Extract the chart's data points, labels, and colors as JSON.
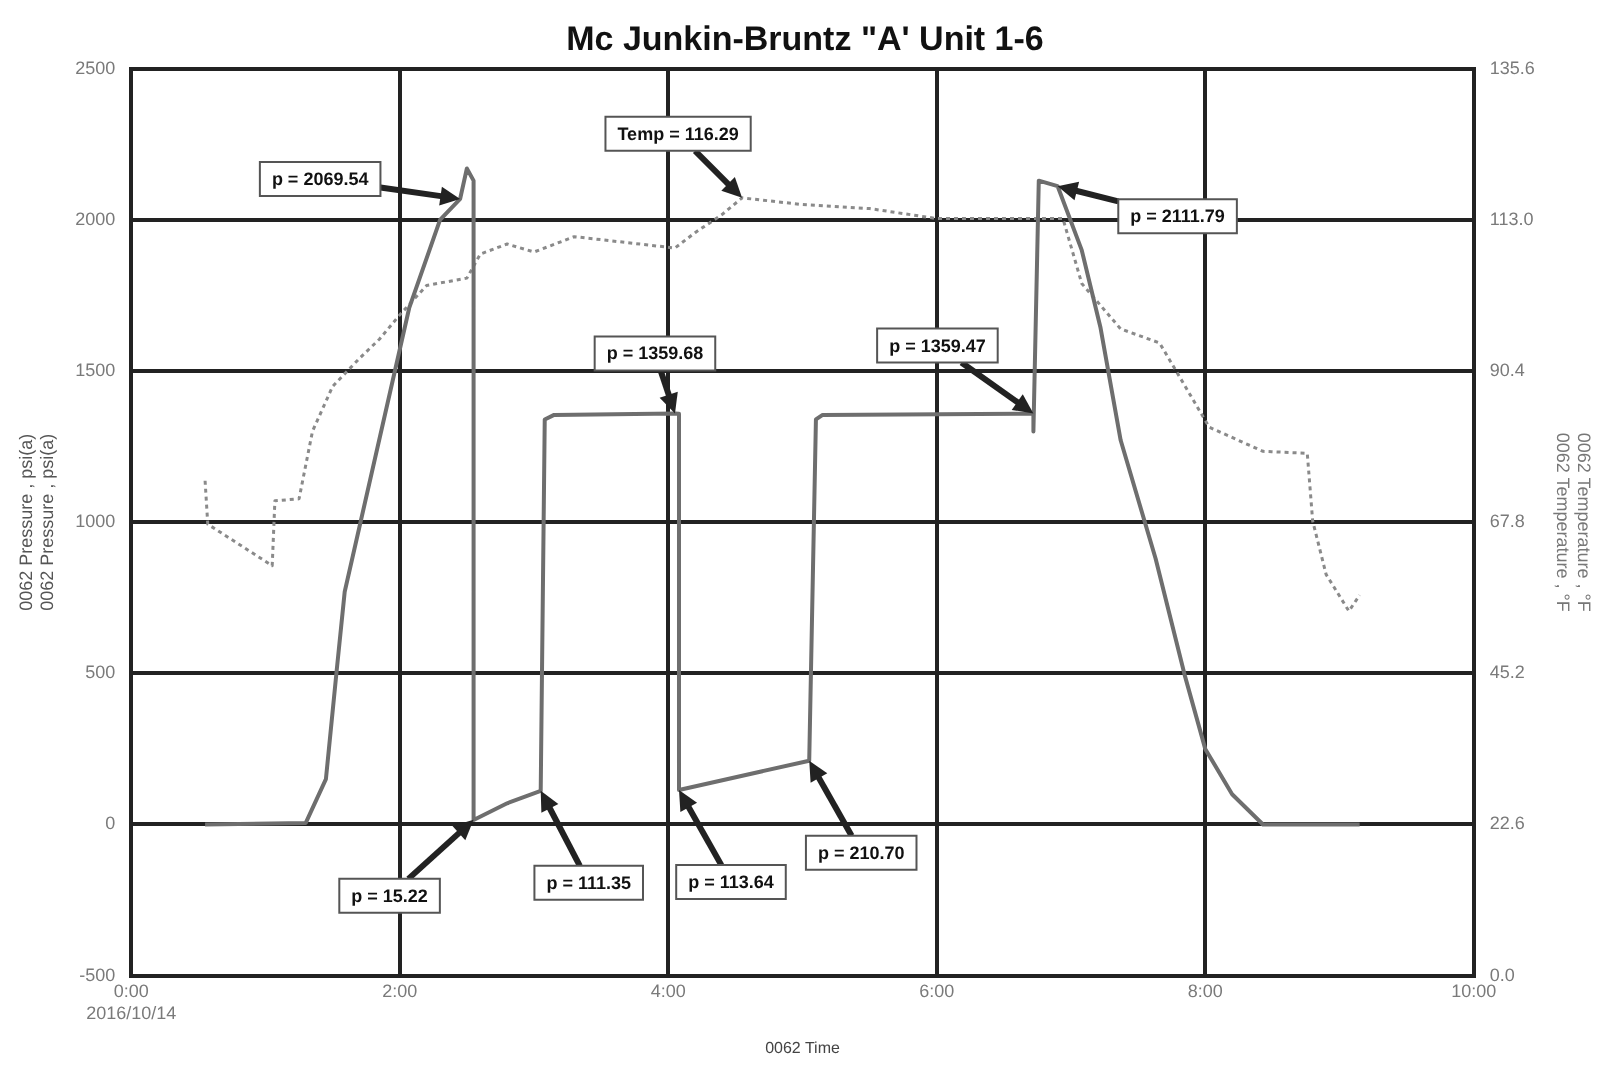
{
  "chart_data": {
    "type": "line",
    "title": "Mc Junkin-Bruntz \"A' Unit 1-6",
    "xlabel": "0062 Time",
    "ylabel": "0062 Pressure , psi(a)\n0062 Pressure , psi(a)",
    "y2label": "0062 Temperature , °F\n0062 Temperature , °F",
    "xlim": [
      0,
      10
    ],
    "xticks": [
      {
        "value": 0,
        "label": "0:00\n2016/10/14"
      },
      {
        "value": 2,
        "label": "2:00"
      },
      {
        "value": 4,
        "label": "4:00"
      },
      {
        "value": 6,
        "label": "6:00"
      },
      {
        "value": 8,
        "label": "8:00"
      },
      {
        "value": 10,
        "label": "10:00"
      }
    ],
    "ylim": [
      -500,
      2500
    ],
    "yticks": [
      -500,
      0,
      500,
      1000,
      1500,
      2000,
      2500
    ],
    "y2lim": [
      0,
      135.6
    ],
    "y2ticks": [
      {
        "value": 0,
        "label": "0.0"
      },
      22.6,
      45.2,
      67.8,
      90.4,
      {
        "value": 113,
        "label": "113.0"
      },
      135.6
    ],
    "grid": true,
    "legend": false,
    "marker": "none",
    "series": [
      {
        "color": "#6e6e6e",
        "line_style": "solid",
        "x": [
          0.55,
          1.3,
          1.45,
          1.53,
          1.59,
          2.07,
          2.3,
          2.45,
          2.5,
          2.55,
          2.55,
          2.8,
          3.05,
          3.08,
          3.15,
          4.05,
          4.08,
          4.08,
          5.05,
          5.1,
          5.15,
          6.72,
          6.72,
          6.76,
          6.9,
          7.08,
          7.22,
          7.37,
          7.63,
          7.85,
          8.0,
          8.2,
          8.43,
          9.15
        ],
        "values": [
          0,
          5,
          150,
          508,
          770,
          1708,
          2000,
          2070,
          2170,
          2130,
          15,
          70,
          111,
          1340,
          1355,
          1360,
          1359,
          114,
          211,
          1340,
          1355,
          1359,
          1300,
          2130,
          2112,
          1900,
          1643,
          1271,
          880,
          489,
          250,
          100,
          0,
          0
        ]
      },
      {
        "color": "#8a8a8a",
        "line_style": "dotted",
        "axis": "y2",
        "x": [
          0.55,
          0.57,
          1.05,
          1.07,
          1.25,
          1.35,
          1.5,
          1.7,
          1.85,
          2.0,
          2.2,
          2.5,
          2.6,
          2.8,
          3.0,
          3.3,
          4.05,
          4.2,
          4.4,
          4.55,
          5.0,
          5.5,
          6.0,
          6.94,
          7.08,
          7.37,
          7.66,
          8.03,
          8.43,
          8.76,
          8.8,
          8.9,
          9.07,
          9.15
        ],
        "values": [
          74.0,
          67.5,
          61.3,
          71.0,
          71.3,
          81.4,
          88.1,
          92.3,
          95.2,
          98.8,
          103.2,
          104.3,
          107.9,
          109.4,
          108.2,
          110.5,
          108.8,
          111.1,
          113.8,
          116.3,
          115.3,
          114.7,
          113.2,
          113.2,
          103.5,
          96.7,
          94.6,
          82.0,
          78.4,
          78.1,
          68.0,
          60.0,
          54.5,
          56.9
        ]
      }
    ],
    "annotations": [
      {
        "text": "p = 2069.54",
        "x": 2.45,
        "y": 2069.54
      },
      {
        "text": "Temp = 116.29",
        "x": 4.55,
        "y": 2073
      },
      {
        "text": "p = 1359.68",
        "x": 4.05,
        "y": 1359.68
      },
      {
        "text": "p = 1359.47",
        "x": 6.72,
        "y": 1359.47
      },
      {
        "text": "p = 2111.79",
        "x": 6.9,
        "y": 2111.79
      },
      {
        "text": "p = 15.22",
        "x": 2.55,
        "y": 15.22
      },
      {
        "text": "p = 111.35",
        "x": 3.05,
        "y": 111.35
      },
      {
        "text": "p = 113.64",
        "x": 4.08,
        "y": 113.64
      },
      {
        "text": "p = 210.70",
        "x": 5.05,
        "y": 210.7
      }
    ]
  }
}
